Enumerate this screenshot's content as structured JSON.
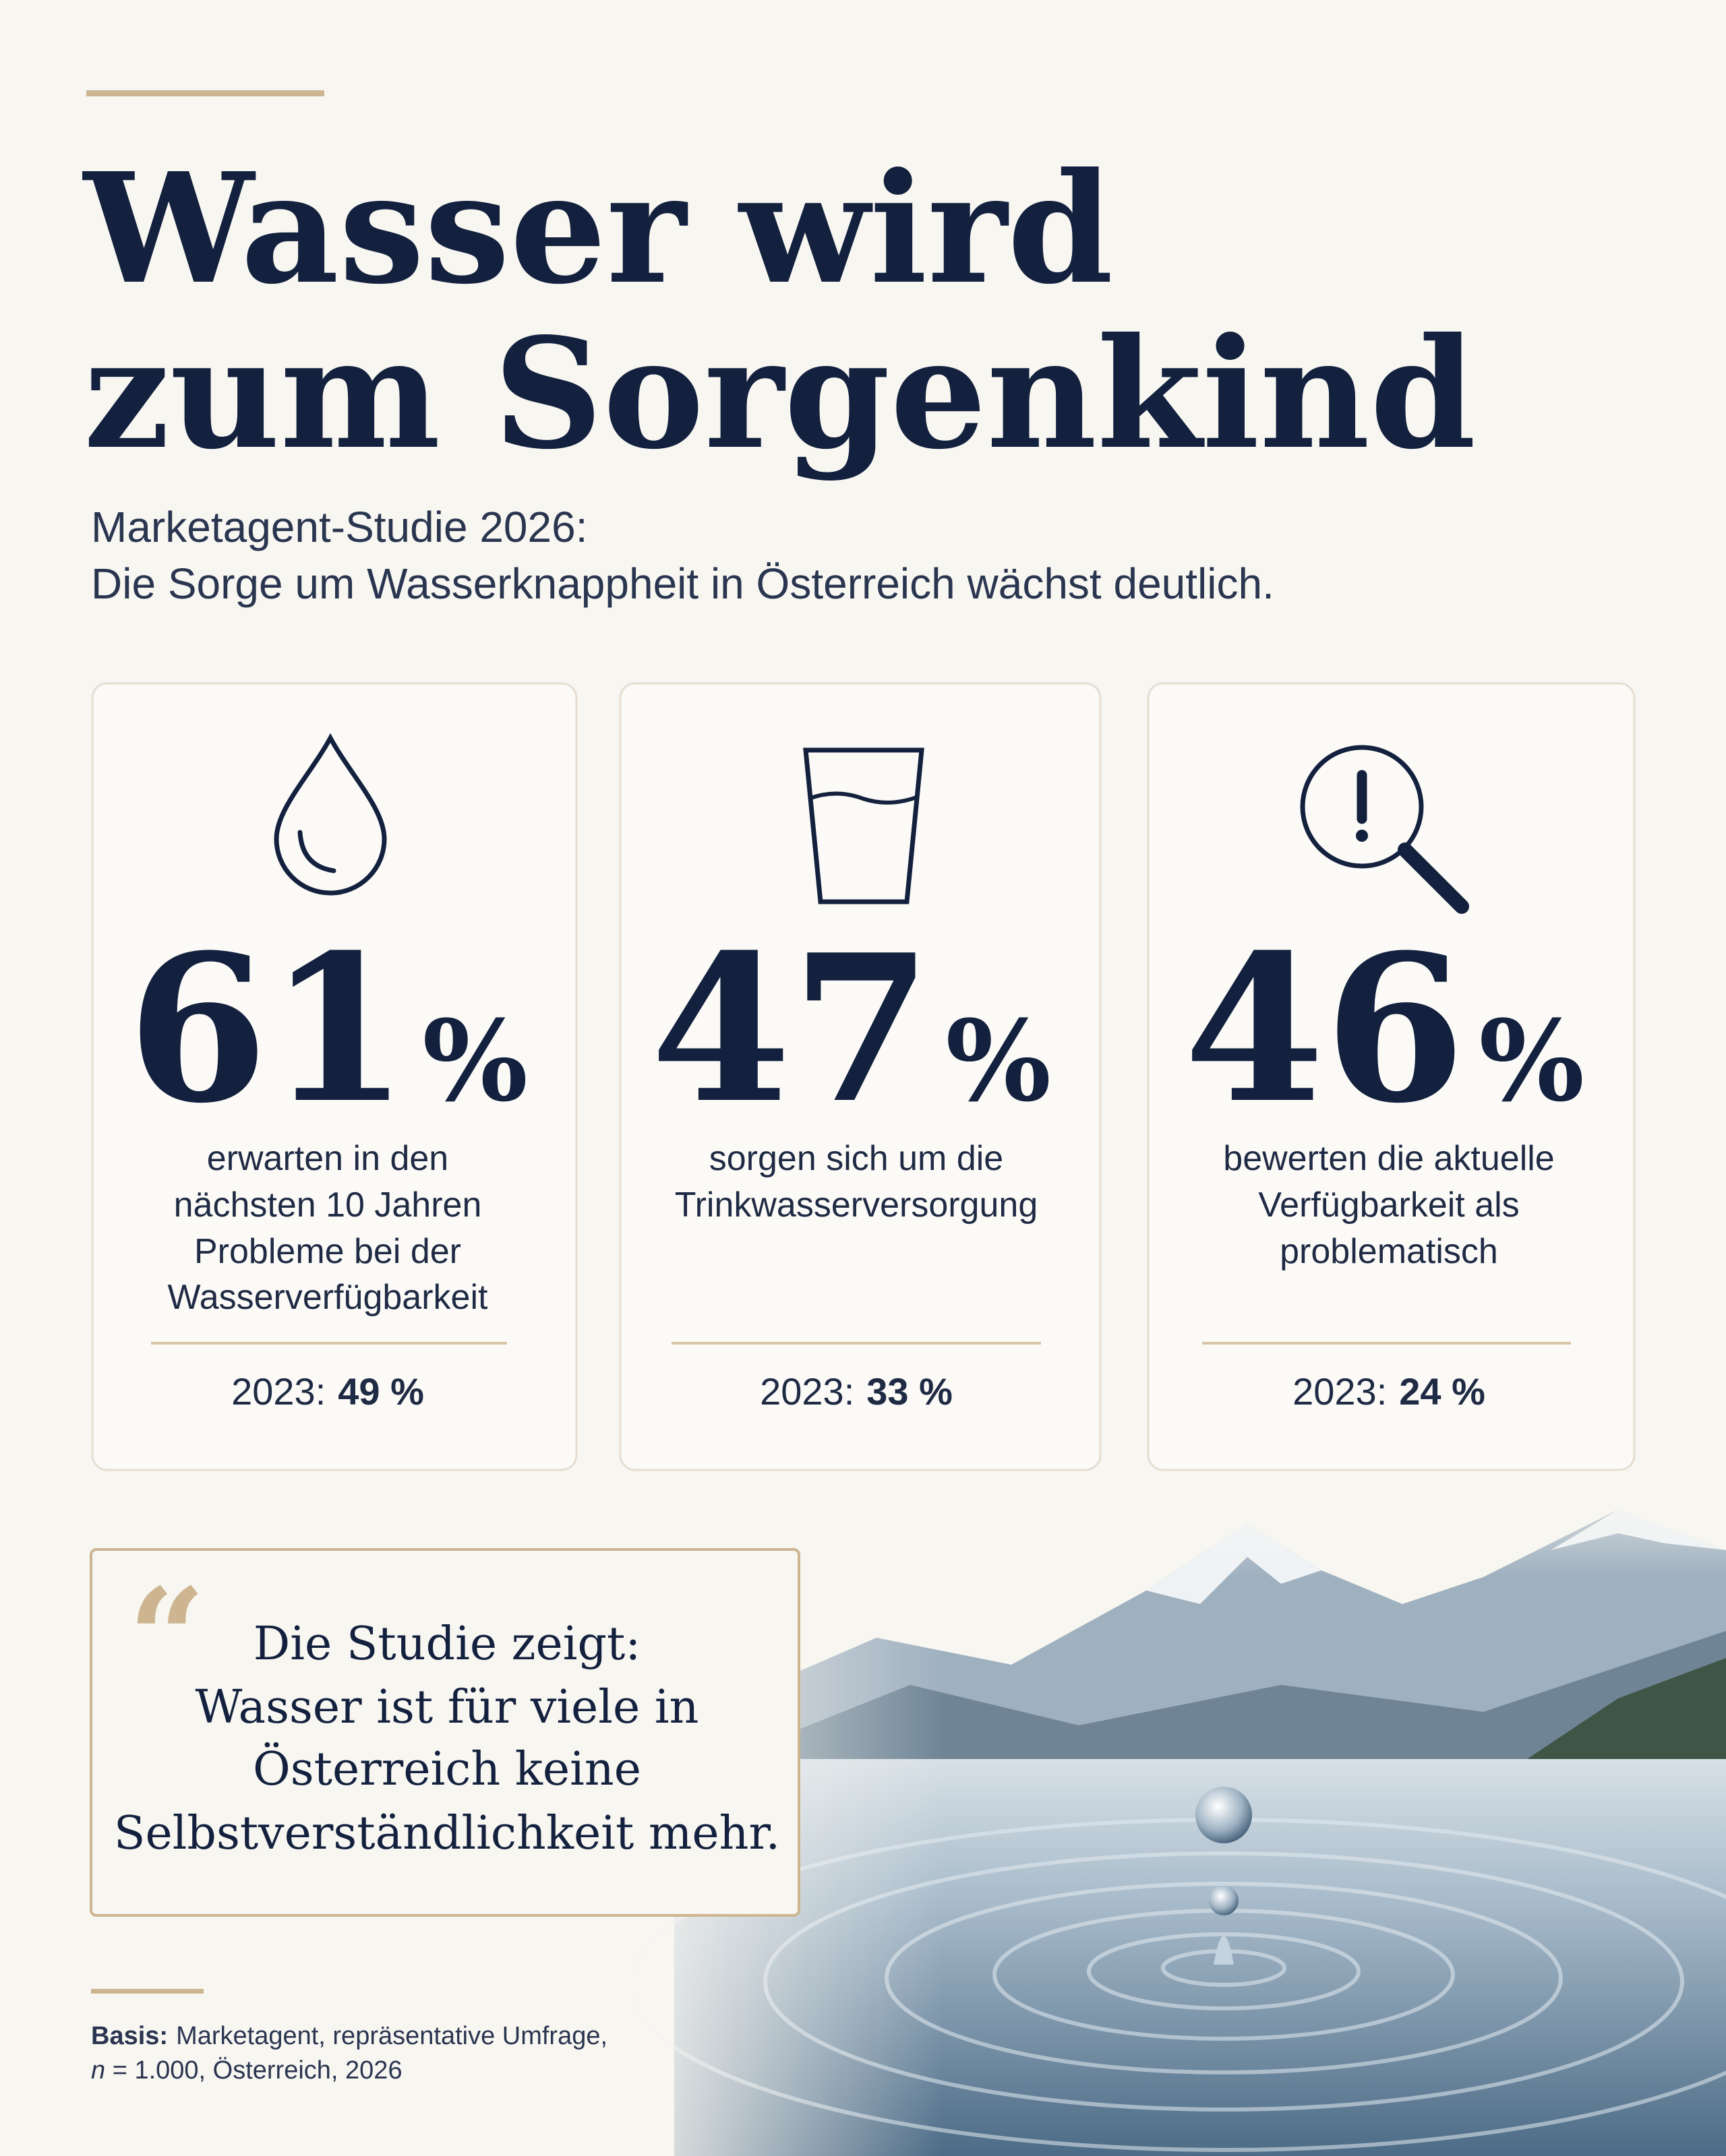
{
  "header": {
    "title": [
      "Wasser wird",
      "zum Sorgenkind"
    ],
    "subtitle": [
      "Marketagent-Studie 2026:",
      "Die Sorge um Wasserknappheit in Österreich wächst deutlich."
    ]
  },
  "cards": [
    {
      "value": "61",
      "unit": "%",
      "description": [
        "erwarten in den",
        "nächsten 10 Jahren",
        "Probleme bei der",
        "Wasserverfügbarkeit"
      ],
      "previous_label": "2023:",
      "previous_value": "49 %"
    },
    {
      "value": "47",
      "unit": "%",
      "description": [
        "sorgen sich um die",
        "Trinkwasserversorgung"
      ],
      "previous_label": "2023:",
      "previous_value": "33 %"
    },
    {
      "value": "46",
      "unit": "%",
      "description": [
        "bewerten die aktuelle",
        "Verfügbarkeit als",
        "problematisch"
      ],
      "previous_label": "2023:",
      "previous_value": "24 %"
    }
  ],
  "quote": {
    "lines": [
      "Die Studie zeigt:",
      "Wasser ist für viele in",
      "Österreich keine",
      "Selbstverständlichkeit mehr."
    ]
  },
  "footnote": {
    "label": "Basis:",
    "line1": "Marketagent, repräsentative Umfrage,",
    "variable": "n",
    "line2": " = 1.000, Österreich, 2026"
  }
}
